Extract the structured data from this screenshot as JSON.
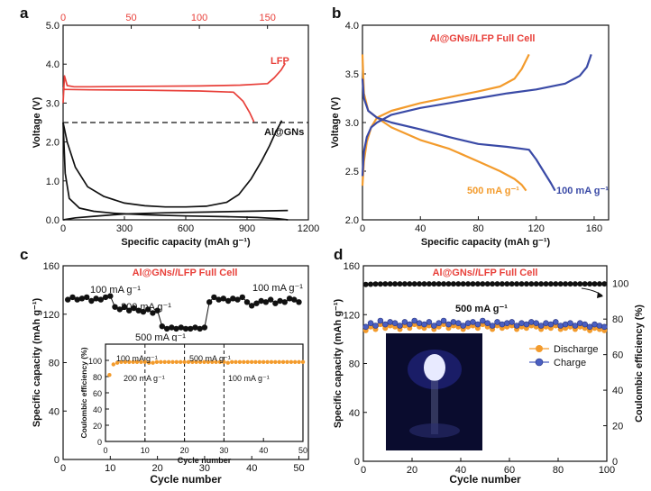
{
  "chart_data": [
    {
      "panel": "a",
      "type": "line",
      "title": "",
      "xlabel": "Specific capacity (mAh g⁻¹)",
      "ylabel": "Voltage (V)",
      "xlim": [
        0,
        1200
      ],
      "ylim": [
        0,
        5
      ],
      "xticks": [
        0,
        300,
        600,
        900,
        1200
      ],
      "yticks": [
        0.0,
        1.0,
        2.0,
        3.0,
        4.0,
        5.0
      ],
      "top_axis": {
        "xlim": [
          0,
          180
        ],
        "ticks": [
          0,
          50,
          100,
          150
        ],
        "color": "#e8403a"
      },
      "reference_line": {
        "y": 2.5,
        "style": "dashed"
      },
      "series": [
        {
          "name": "LFP",
          "axis": "top",
          "color": "#e8403a",
          "x": [
            0,
            1,
            3,
            8,
            20,
            60,
            100,
            130,
            150,
            155,
            160,
            163
          ],
          "y": [
            3.0,
            3.7,
            3.45,
            3.42,
            3.42,
            3.43,
            3.44,
            3.46,
            3.5,
            3.65,
            3.85,
            4.02
          ]
        },
        {
          "name": "",
          "axis": "top",
          "color": "#e8403a",
          "x": [
            0,
            1,
            3,
            20,
            60,
            100,
            125,
            132,
            137,
            140
          ],
          "y": [
            3.4,
            3.35,
            3.35,
            3.34,
            3.33,
            3.31,
            3.28,
            3.05,
            2.75,
            2.52
          ]
        },
        {
          "name": "Al@GNs",
          "axis": "bottom",
          "color": "#111111",
          "x": [
            0,
            20,
            60,
            120,
            200,
            300,
            400,
            500,
            600,
            700,
            800,
            860,
            920,
            970,
            1010,
            1040,
            1060,
            1070
          ],
          "y": [
            2.5,
            2.0,
            1.35,
            0.85,
            0.6,
            0.43,
            0.36,
            0.33,
            0.33,
            0.35,
            0.45,
            0.65,
            1.05,
            1.5,
            1.9,
            2.25,
            2.45,
            2.55
          ]
        },
        {
          "name": "",
          "axis": "bottom",
          "color": "#111111",
          "x": [
            0,
            10,
            30,
            80,
            150,
            250,
            400,
            600,
            800,
            950,
            1050,
            1100
          ],
          "y": [
            2.5,
            1.2,
            0.55,
            0.3,
            0.22,
            0.17,
            0.13,
            0.1,
            0.08,
            0.06,
            0.03,
            0.0
          ]
        },
        {
          "name": "",
          "axis": "bottom",
          "color": "#111111",
          "x": [
            0,
            60,
            150,
            300,
            500,
            700,
            900,
            1100
          ],
          "y": [
            0.0,
            0.05,
            0.09,
            0.15,
            0.18,
            0.2,
            0.22,
            0.24
          ]
        }
      ]
    },
    {
      "panel": "b",
      "type": "line",
      "title": "Al@GNs//LFP Full Cell",
      "xlabel": "Specific capacity (mAh g⁻¹)",
      "ylabel": "Voltage (V)",
      "xlim": [
        0,
        170
      ],
      "ylim": [
        2.0,
        4.0
      ],
      "xticks": [
        0,
        40,
        80,
        120,
        160
      ],
      "yticks": [
        2.0,
        2.5,
        3.0,
        3.5,
        4.0
      ],
      "series": [
        {
          "name": "500 mA g⁻¹",
          "color": "#f39b2c",
          "kind": "charge",
          "x": [
            0,
            1,
            3,
            6,
            10,
            20,
            40,
            60,
            80,
            95,
            105,
            110,
            115
          ],
          "y": [
            2.35,
            2.6,
            2.8,
            2.95,
            3.05,
            3.12,
            3.2,
            3.26,
            3.32,
            3.37,
            3.45,
            3.55,
            3.7
          ]
        },
        {
          "name": "",
          "color": "#f39b2c",
          "kind": "discharge",
          "x": [
            0,
            1,
            4,
            10,
            20,
            40,
            60,
            80,
            95,
            105,
            110,
            113
          ],
          "y": [
            3.7,
            3.3,
            3.12,
            3.05,
            2.95,
            2.82,
            2.73,
            2.6,
            2.5,
            2.42,
            2.36,
            2.3
          ]
        },
        {
          "name": "100 mA g⁻¹",
          "color": "#3a4aa6",
          "kind": "charge",
          "x": [
            0,
            1,
            3,
            6,
            10,
            20,
            40,
            60,
            80,
            100,
            120,
            140,
            150,
            155,
            158
          ],
          "y": [
            2.45,
            2.7,
            2.85,
            2.95,
            3.0,
            3.08,
            3.15,
            3.2,
            3.25,
            3.3,
            3.34,
            3.4,
            3.48,
            3.57,
            3.7
          ]
        },
        {
          "name": "",
          "color": "#3a4aa6",
          "kind": "discharge",
          "x": [
            0,
            1,
            4,
            10,
            20,
            40,
            60,
            80,
            100,
            115,
            120,
            125,
            130,
            133
          ],
          "y": [
            3.45,
            3.25,
            3.12,
            3.05,
            3.0,
            2.93,
            2.85,
            2.78,
            2.75,
            2.72,
            2.62,
            2.5,
            2.38,
            2.3
          ]
        }
      ]
    },
    {
      "panel": "c",
      "type": "scatter",
      "title": "Al@GNs//LFP Full Cell",
      "xlabel": "Cycle number",
      "ylabel": "Specific capacity (mAh g⁻¹)",
      "xlim": [
        0,
        52
      ],
      "ylim": [
        0,
        160
      ],
      "xticks": [
        0,
        10,
        20,
        30,
        40,
        50
      ],
      "yticks": [
        0,
        40,
        80,
        120,
        160
      ],
      "annotations": [
        "100 mA g⁻¹",
        "200 mA g⁻¹",
        "500 mA g⁻¹",
        "100 mA g⁻¹"
      ],
      "series": [
        {
          "name": "",
          "color": "#111111",
          "x": [
            1,
            2,
            3,
            4,
            5,
            6,
            7,
            8,
            9,
            10,
            11,
            12,
            13,
            14,
            15,
            16,
            17,
            18,
            19,
            20,
            21,
            22,
            23,
            24,
            25,
            26,
            27,
            28,
            29,
            30,
            31,
            32,
            33,
            34,
            35,
            36,
            37,
            38,
            39,
            40,
            41,
            42,
            43,
            44,
            45,
            46,
            47,
            48,
            49,
            50
          ],
          "y": [
            132,
            134,
            132,
            133,
            134,
            131,
            133,
            132,
            134,
            135,
            126,
            124,
            126,
            123,
            125,
            123,
            122,
            124,
            121,
            123,
            110,
            108,
            109,
            108,
            109,
            108,
            108,
            109,
            108,
            109,
            130,
            134,
            132,
            133,
            131,
            133,
            132,
            134,
            130,
            127,
            129,
            131,
            130,
            132,
            129,
            131,
            130,
            133,
            132,
            130
          ]
        }
      ],
      "inset": {
        "type": "scatter",
        "xlabel": "Cycle number",
        "ylabel": "Coulombic efficiency (%)",
        "xlim": [
          0,
          50
        ],
        "ylim": [
          0,
          120
        ],
        "xticks": [
          0,
          10,
          20,
          30,
          40,
          50
        ],
        "yticks": [
          0,
          20,
          40,
          60,
          80,
          100
        ],
        "dividers": [
          10,
          20,
          30
        ],
        "annotations": [
          "100 mA g⁻¹",
          "200 mA g⁻¹",
          "500 mA g⁻¹",
          "100 mA g⁻¹"
        ],
        "series": [
          {
            "name": "",
            "color": "#f39b2c",
            "x": [
              1,
              2,
              3,
              4,
              5,
              6,
              7,
              8,
              9,
              10,
              11,
              12,
              13,
              14,
              15,
              16,
              17,
              18,
              19,
              20,
              21,
              22,
              23,
              24,
              25,
              26,
              27,
              28,
              29,
              30,
              31,
              32,
              33,
              34,
              35,
              36,
              37,
              38,
              39,
              40,
              41,
              42,
              43,
              44,
              45,
              46,
              47,
              48,
              49,
              50
            ],
            "y": [
              82,
              95,
              97,
              98,
              98,
              98,
              98,
              98,
              98,
              98,
              97,
              97,
              98,
              98,
              98,
              98,
              98,
              98,
              98,
              98,
              98,
              98,
              98,
              98,
              98,
              98,
              98,
              98,
              98,
              98,
              97,
              98,
              98,
              98,
              98,
              98,
              98,
              98,
              98,
              98,
              98,
              98,
              98,
              98,
              98,
              98,
              98,
              98,
              98,
              98
            ]
          }
        ]
      }
    },
    {
      "panel": "d",
      "type": "scatter",
      "title": "Al@GNs//LFP Full Cell",
      "xlabel": "Cycle number",
      "ylabel": "Specific capacity (mAh g⁻¹)",
      "y2label": "Coulombic efficiency (%)",
      "xlim": [
        0,
        100
      ],
      "ylim": [
        0,
        160
      ],
      "y2lim": [
        0,
        110
      ],
      "xticks": [
        0,
        20,
        40,
        60,
        80,
        100
      ],
      "yticks": [
        0,
        40,
        80,
        120,
        160
      ],
      "y2ticks": [
        0,
        20,
        40,
        60,
        80,
        100
      ],
      "annotation": "500 mA g⁻¹",
      "legend": "right",
      "series": [
        {
          "name": "Discharge",
          "color": "#f39b2c",
          "axis": "left",
          "x": [
            1,
            3,
            5,
            7,
            9,
            11,
            13,
            15,
            17,
            19,
            21,
            23,
            25,
            27,
            29,
            31,
            33,
            35,
            37,
            39,
            41,
            43,
            45,
            47,
            49,
            51,
            53,
            55,
            57,
            59,
            61,
            63,
            65,
            67,
            69,
            71,
            73,
            75,
            77,
            79,
            81,
            83,
            85,
            87,
            89,
            91,
            93,
            95,
            97,
            99
          ],
          "y": [
            107,
            110,
            108,
            112,
            109,
            111,
            110,
            108,
            111,
            109,
            112,
            110,
            109,
            111,
            108,
            110,
            112,
            109,
            111,
            110,
            108,
            110,
            111,
            109,
            112,
            110,
            108,
            111,
            109,
            110,
            111,
            108,
            110,
            109,
            111,
            110,
            108,
            110,
            109,
            111,
            108,
            109,
            110,
            108,
            110,
            109,
            107,
            109,
            108,
            107
          ]
        },
        {
          "name": "Charge",
          "color": "#4a5fc1",
          "axis": "left",
          "x": [
            1,
            3,
            5,
            7,
            9,
            11,
            13,
            15,
            17,
            19,
            21,
            23,
            25,
            27,
            29,
            31,
            33,
            35,
            37,
            39,
            41,
            43,
            45,
            47,
            49,
            51,
            53,
            55,
            57,
            59,
            61,
            63,
            65,
            67,
            69,
            71,
            73,
            75,
            77,
            79,
            81,
            83,
            85,
            87,
            89,
            91,
            93,
            95,
            97,
            99
          ],
          "y": [
            110,
            113,
            111,
            115,
            112,
            114,
            113,
            111,
            114,
            112,
            115,
            113,
            112,
            114,
            111,
            113,
            115,
            112,
            114,
            113,
            111,
            113,
            114,
            112,
            115,
            113,
            111,
            114,
            112,
            113,
            114,
            111,
            113,
            112,
            114,
            113,
            111,
            113,
            112,
            114,
            111,
            112,
            113,
            111,
            113,
            112,
            110,
            112,
            111,
            110
          ]
        },
        {
          "name": "",
          "color": "#111111",
          "axis": "right",
          "x": [
            1,
            3,
            5,
            7,
            9,
            11,
            13,
            15,
            17,
            19,
            21,
            23,
            25,
            27,
            29,
            31,
            33,
            35,
            37,
            39,
            41,
            43,
            45,
            47,
            49,
            51,
            53,
            55,
            57,
            59,
            61,
            63,
            65,
            67,
            69,
            71,
            73,
            75,
            77,
            79,
            81,
            83,
            85,
            87,
            89,
            91,
            93,
            95,
            97,
            99
          ],
          "y": [
            99.5,
            99.6,
            99.7,
            99.7,
            99.8,
            99.8,
            99.8,
            99.8,
            99.8,
            99.8,
            99.8,
            99.8,
            99.8,
            99.8,
            99.8,
            99.8,
            99.8,
            99.8,
            99.8,
            99.8,
            99.8,
            99.8,
            99.8,
            99.8,
            99.8,
            99.8,
            99.8,
            99.8,
            99.8,
            99.8,
            99.8,
            99.8,
            99.8,
            99.8,
            99.8,
            99.8,
            99.8,
            99.8,
            99.8,
            99.8,
            99.8,
            99.8,
            99.8,
            99.8,
            99.8,
            99.8,
            99.8,
            99.8,
            99.8,
            99.8
          ]
        }
      ]
    }
  ],
  "panel_letters": [
    "a",
    "b",
    "c",
    "d"
  ],
  "colors": {
    "red": "#e8403a",
    "orange": "#f39b2c",
    "blue": "#3a4aa6",
    "black": "#111111"
  }
}
